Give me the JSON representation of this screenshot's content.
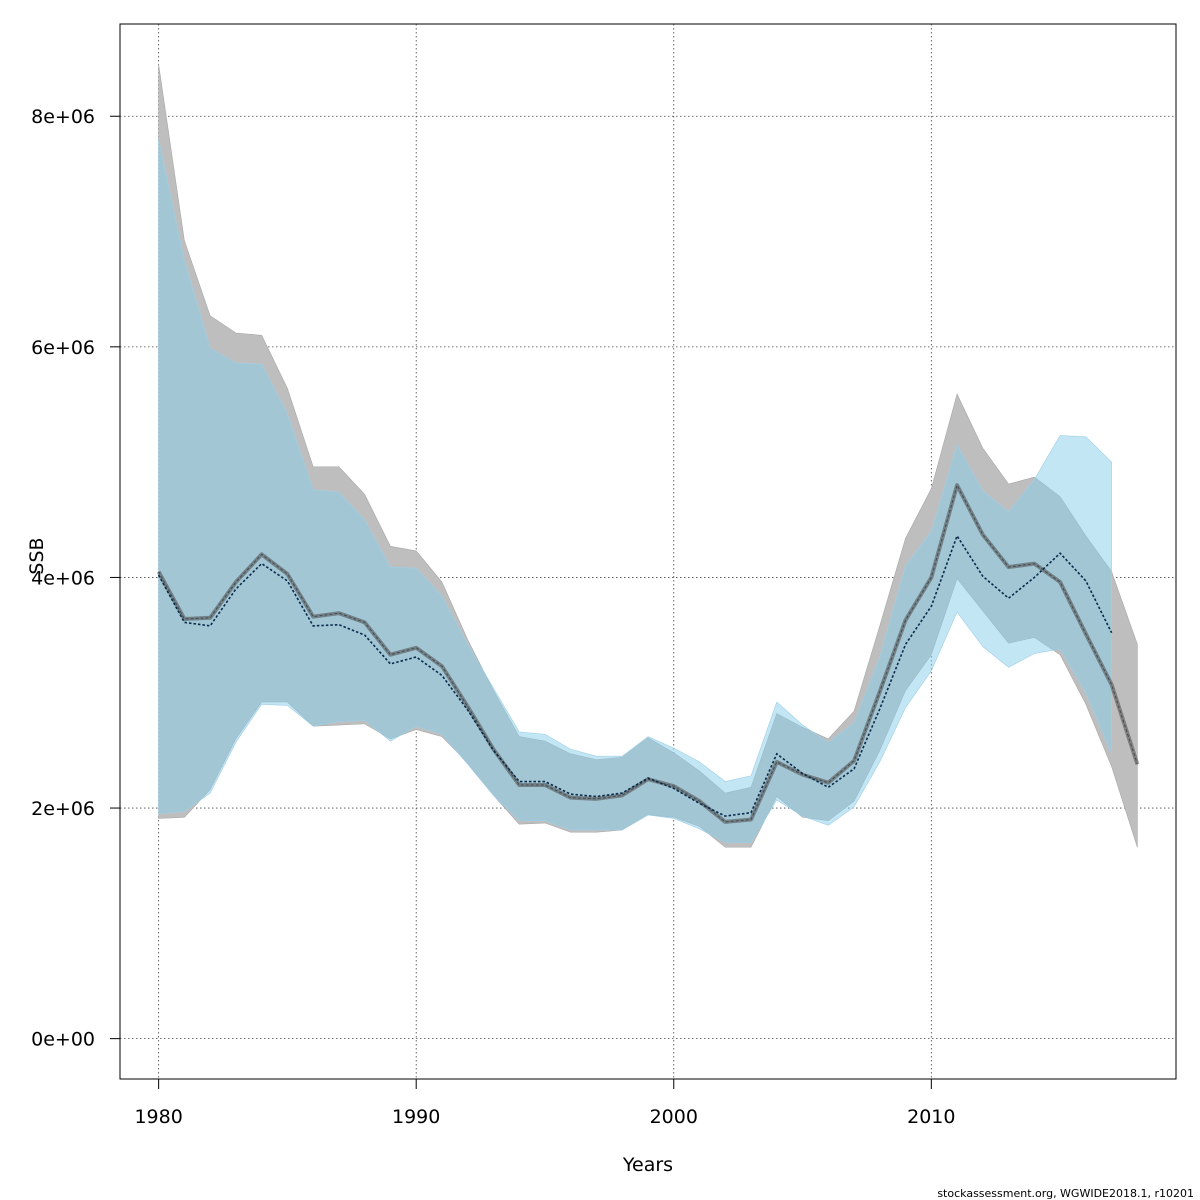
{
  "chart_data": {
    "type": "area",
    "xlabel": "Years",
    "ylabel": "SSB",
    "xlim": [
      1978.5,
      2019.5
    ],
    "ylim": [
      -350000,
      8800000
    ],
    "x_ticks": [
      1980,
      1990,
      2000,
      2010
    ],
    "x_tick_labels": [
      "1980",
      "1990",
      "2000",
      "2010"
    ],
    "y_ticks": [
      0,
      2000000,
      4000000,
      6000000,
      8000000
    ],
    "y_tick_labels": [
      "0e+00",
      "2e+06",
      "4e+06",
      "6e+06",
      "8e+06"
    ],
    "grid": true,
    "colors": {
      "grey_band": "#bebebe",
      "blue_band": "#87ceeb",
      "overlap_band": "#a4c4d4",
      "grey_line": "#4a4a4a",
      "blue_line": "#0a2a4a"
    },
    "series": [
      {
        "x": [
          1980,
          1981,
          1982,
          1983,
          1984,
          1985,
          1986,
          1987,
          1988,
          1989,
          1990,
          1991,
          1992,
          1993,
          1994,
          1995,
          1996,
          1997,
          1998,
          1999,
          2000,
          2001,
          2002,
          2003,
          2004,
          2005,
          2006,
          2007,
          2008,
          2009,
          2010,
          2011,
          2012,
          2013,
          2014,
          2015,
          2016,
          2017,
          2018
        ],
        "estimate": [
          4050000,
          3640000,
          3650000,
          3960000,
          4200000,
          4030000,
          3660000,
          3690000,
          3610000,
          3330000,
          3390000,
          3230000,
          2880000,
          2510000,
          2200000,
          2200000,
          2090000,
          2080000,
          2110000,
          2250000,
          2190000,
          2060000,
          1880000,
          1900000,
          2400000,
          2290000,
          2220000,
          2410000,
          3010000,
          3630000,
          4000000,
          4800000,
          4370000,
          4090000,
          4120000,
          3960000,
          3510000,
          3070000,
          2380000
        ],
        "lower": [
          1910000,
          1920000,
          2160000,
          2600000,
          2920000,
          2920000,
          2710000,
          2720000,
          2730000,
          2600000,
          2680000,
          2620000,
          2390000,
          2110000,
          1860000,
          1870000,
          1790000,
          1790000,
          1810000,
          1940000,
          1920000,
          1840000,
          1660000,
          1660000,
          2100000,
          1920000,
          1890000,
          2060000,
          2500000,
          3020000,
          3330000,
          3990000,
          3710000,
          3430000,
          3480000,
          3330000,
          2900000,
          2360000,
          1660000
        ],
        "upper": [
          8450000,
          6920000,
          6270000,
          6120000,
          6100000,
          5640000,
          4960000,
          4960000,
          4720000,
          4270000,
          4230000,
          3960000,
          3460000,
          3020000,
          2620000,
          2580000,
          2470000,
          2420000,
          2440000,
          2610000,
          2480000,
          2320000,
          2130000,
          2180000,
          2820000,
          2700000,
          2600000,
          2840000,
          3580000,
          4340000,
          4770000,
          5590000,
          5120000,
          4810000,
          4870000,
          4700000,
          4360000,
          4050000,
          3420000
        ]
      },
      {
        "x": [
          1980,
          1981,
          1982,
          1983,
          1984,
          1985,
          1986,
          1987,
          1988,
          1989,
          1990,
          1991,
          1992,
          1993,
          1994,
          1995,
          1996,
          1997,
          1998,
          1999,
          2000,
          2001,
          2002,
          2003,
          2004,
          2005,
          2006,
          2007,
          2008,
          2009,
          2010,
          2011,
          2012,
          2013,
          2014,
          2015,
          2016,
          2017
        ],
        "estimate": [
          4020000,
          3610000,
          3580000,
          3900000,
          4120000,
          3970000,
          3580000,
          3590000,
          3500000,
          3250000,
          3310000,
          3150000,
          2850000,
          2500000,
          2230000,
          2230000,
          2120000,
          2100000,
          2130000,
          2260000,
          2170000,
          2040000,
          1930000,
          1960000,
          2470000,
          2300000,
          2180000,
          2340000,
          2860000,
          3420000,
          3750000,
          4360000,
          4010000,
          3820000,
          4000000,
          4210000,
          3970000,
          3520000
        ],
        "lower": [
          1950000,
          1970000,
          2130000,
          2570000,
          2900000,
          2890000,
          2710000,
          2750000,
          2760000,
          2580000,
          2710000,
          2640000,
          2380000,
          2110000,
          1890000,
          1890000,
          1810000,
          1810000,
          1810000,
          1940000,
          1910000,
          1820000,
          1700000,
          1700000,
          2070000,
          1930000,
          1850000,
          2010000,
          2400000,
          2870000,
          3190000,
          3700000,
          3400000,
          3220000,
          3340000,
          3380000,
          3000000,
          2470000
        ],
        "upper": [
          7800000,
          6750000,
          5990000,
          5860000,
          5850000,
          5420000,
          4760000,
          4740000,
          4500000,
          4090000,
          4080000,
          3840000,
          3420000,
          3040000,
          2660000,
          2640000,
          2510000,
          2450000,
          2450000,
          2620000,
          2520000,
          2400000,
          2230000,
          2280000,
          2920000,
          2720000,
          2570000,
          2740000,
          3310000,
          4100000,
          4400000,
          5150000,
          4750000,
          4570000,
          4850000,
          5230000,
          5220000,
          5000000
        ]
      }
    ]
  },
  "footer_text": "stockassessment.org, WGWIDE2018.1, r10201"
}
